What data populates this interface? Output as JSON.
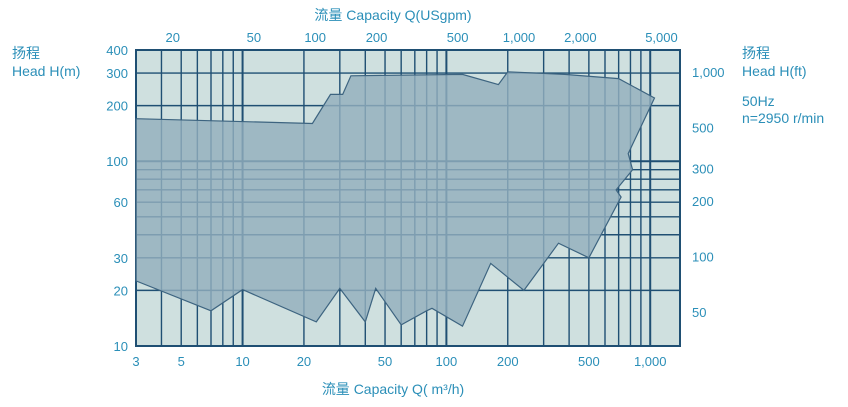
{
  "chart_data": {
    "type": "area",
    "bottom_axis_label": "流量  Capacity Q( m³/h)",
    "top_axis_label": "流量  Capacity Q(USgpm)",
    "left_axis_label_zh": "扬程",
    "left_axis_label_en": "Head H(m)",
    "right_axis_label_zh": "扬程",
    "right_axis_label_en": "Head H(ft)",
    "conditions": [
      "50Hz",
      "n=2950 r/min"
    ],
    "x_scale": "log",
    "y_scale": "log",
    "xlim": [
      3,
      1400
    ],
    "ylim": [
      10,
      400
    ],
    "grid": true,
    "x_ticks": [
      {
        "value": 3,
        "label": "3"
      },
      {
        "value": 5,
        "label": "5"
      },
      {
        "value": 10,
        "label": "10"
      },
      {
        "value": 20,
        "label": "20"
      },
      {
        "value": 50,
        "label": "50"
      },
      {
        "value": 100,
        "label": "100"
      },
      {
        "value": 200,
        "label": "200"
      },
      {
        "value": 500,
        "label": "500"
      },
      {
        "value": 1000,
        "label": "1,000"
      }
    ],
    "top_ticks": [
      {
        "value": 20,
        "label": "20"
      },
      {
        "value": 50,
        "label": "50"
      },
      {
        "value": 100,
        "label": "100"
      },
      {
        "value": 200,
        "label": "200"
      },
      {
        "value": 500,
        "label": "500"
      },
      {
        "value": 1000,
        "label": "1,000"
      },
      {
        "value": 2000,
        "label": "2,000"
      },
      {
        "value": 5000,
        "label": "5,000"
      }
    ],
    "y_ticks": [
      {
        "value": 10,
        "label": "10"
      },
      {
        "value": 20,
        "label": "20"
      },
      {
        "value": 30,
        "label": "30"
      },
      {
        "value": 60,
        "label": "60"
      },
      {
        "value": 100,
        "label": "100"
      },
      {
        "value": 200,
        "label": "200"
      },
      {
        "value": 300,
        "label": "300"
      },
      {
        "value": 400,
        "label": "400"
      }
    ],
    "right_ticks": [
      {
        "value": 50,
        "label": "50"
      },
      {
        "value": 100,
        "label": "100"
      },
      {
        "value": 200,
        "label": "200"
      },
      {
        "value": 300,
        "label": "300"
      },
      {
        "value": 500,
        "label": "500"
      },
      {
        "value": 1000,
        "label": "1,000"
      }
    ],
    "envelope": [
      [
        3,
        170
      ],
      [
        22,
        160
      ],
      [
        27,
        230
      ],
      [
        31,
        230
      ],
      [
        34,
        290
      ],
      [
        120,
        295
      ],
      [
        180,
        260
      ],
      [
        200,
        305
      ],
      [
        380,
        295
      ],
      [
        700,
        280
      ],
      [
        1050,
        220
      ],
      [
        780,
        110
      ],
      [
        820,
        90
      ],
      [
        680,
        70
      ],
      [
        720,
        64
      ],
      [
        500,
        30
      ],
      [
        355,
        36
      ],
      [
        240,
        20
      ],
      [
        165,
        28
      ],
      [
        120,
        12.8
      ],
      [
        85,
        16
      ],
      [
        80,
        15.5
      ],
      [
        60,
        13
      ],
      [
        45,
        20.5
      ],
      [
        40,
        13.5
      ],
      [
        30,
        20.5
      ],
      [
        23,
        13.5
      ],
      [
        10,
        20.2
      ],
      [
        7,
        15.5
      ],
      [
        3,
        22.5
      ]
    ],
    "colors": {
      "grid": "#1f4f73",
      "background": "#cfe0df",
      "area_fill": "#92aebd",
      "area_stroke": "#3d6480",
      "text": "#2b8fb8"
    }
  }
}
